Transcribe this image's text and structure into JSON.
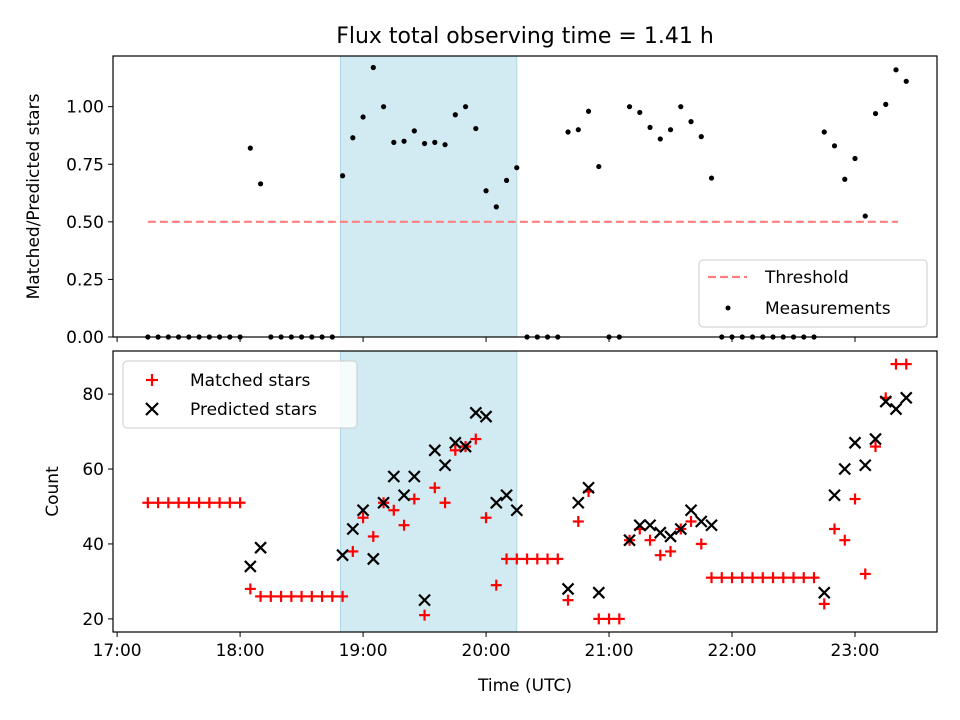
{
  "title": "Flux total observing time = 1.41 h",
  "colors": {
    "threshold": "#ff7f7f",
    "band": "#add8e6",
    "matched": "#ff0000",
    "predicted": "#000000",
    "measure": "#000000"
  },
  "chart_data": [
    {
      "type": "scatter",
      "ylabel": "Matched/Predicted stars",
      "ylim": [
        0,
        1.22
      ],
      "yticks": [
        "0.00",
        "0.25",
        "0.50",
        "0.75",
        "1.00"
      ],
      "xlim": [
        "16:58",
        "23:40"
      ],
      "highlight_band": [
        "18:49",
        "20:15"
      ],
      "threshold": {
        "name": "Threshold",
        "value": 0.5,
        "x_range": [
          "17:15",
          "23:21"
        ],
        "style": "dashed"
      },
      "legend": {
        "position": "lower-right",
        "entries": [
          "Threshold",
          "Measurements"
        ]
      },
      "series": [
        {
          "name": "Measurements",
          "points": [
            [
              "17:15",
              0
            ],
            [
              "17:20",
              0
            ],
            [
              "17:25",
              0
            ],
            [
              "17:30",
              0
            ],
            [
              "17:35",
              0
            ],
            [
              "17:40",
              0
            ],
            [
              "17:45",
              0
            ],
            [
              "17:50",
              0
            ],
            [
              "17:55",
              0
            ],
            [
              "18:00",
              0
            ],
            [
              "18:05",
              0.82
            ],
            [
              "18:10",
              0.665
            ],
            [
              "18:15",
              0
            ],
            [
              "18:20",
              0
            ],
            [
              "18:25",
              0
            ],
            [
              "18:30",
              0
            ],
            [
              "18:35",
              0
            ],
            [
              "18:40",
              0
            ],
            [
              "18:45",
              0
            ],
            [
              "18:50",
              0.7
            ],
            [
              "18:55",
              0.865
            ],
            [
              "19:00",
              0.955
            ],
            [
              "19:05",
              1.17
            ],
            [
              "19:10",
              1.0
            ],
            [
              "19:15",
              0.845
            ],
            [
              "19:20",
              0.85
            ],
            [
              "19:25",
              0.895
            ],
            [
              "19:30",
              0.84
            ],
            [
              "19:35",
              0.845
            ],
            [
              "19:40",
              0.835
            ],
            [
              "19:45",
              0.965
            ],
            [
              "19:50",
              1.0
            ],
            [
              "19:55",
              0.905
            ],
            [
              "20:00",
              0.635
            ],
            [
              "20:05",
              0.565
            ],
            [
              "20:10",
              0.68
            ],
            [
              "20:15",
              0.735
            ],
            [
              "20:20",
              0
            ],
            [
              "20:25",
              0
            ],
            [
              "20:30",
              0
            ],
            [
              "20:35",
              0
            ],
            [
              "20:40",
              0.89
            ],
            [
              "20:45",
              0.9
            ],
            [
              "20:50",
              0.98
            ],
            [
              "20:55",
              0.74
            ],
            [
              "21:00",
              0
            ],
            [
              "21:05",
              0
            ],
            [
              "21:10",
              1.0
            ],
            [
              "21:15",
              0.975
            ],
            [
              "21:20",
              0.91
            ],
            [
              "21:25",
              0.86
            ],
            [
              "21:30",
              0.9
            ],
            [
              "21:35",
              1.0
            ],
            [
              "21:40",
              0.935
            ],
            [
              "21:45",
              0.87
            ],
            [
              "21:50",
              0.69
            ],
            [
              "21:55",
              0
            ],
            [
              "22:00",
              0
            ],
            [
              "22:05",
              0
            ],
            [
              "22:10",
              0
            ],
            [
              "22:15",
              0
            ],
            [
              "22:20",
              0
            ],
            [
              "22:25",
              0
            ],
            [
              "22:30",
              0
            ],
            [
              "22:35",
              0
            ],
            [
              "22:40",
              0
            ],
            [
              "22:45",
              0.89
            ],
            [
              "22:50",
              0.83
            ],
            [
              "22:55",
              0.685
            ],
            [
              "23:00",
              0.775
            ],
            [
              "23:05",
              0.525
            ],
            [
              "23:10",
              0.97
            ],
            [
              "23:15",
              1.01
            ],
            [
              "23:20",
              1.16
            ],
            [
              "23:25",
              1.11
            ]
          ]
        }
      ]
    },
    {
      "type": "scatter",
      "xlabel": "Time (UTC)",
      "ylabel": "Count",
      "ylim": [
        16.5,
        91.5
      ],
      "yticks": [
        "20",
        "40",
        "60",
        "80"
      ],
      "xlim": [
        "16:58",
        "23:40"
      ],
      "xticks": [
        "17:00",
        "18:00",
        "19:00",
        "20:00",
        "21:00",
        "22:00",
        "23:00"
      ],
      "highlight_band": [
        "18:49",
        "20:15"
      ],
      "legend": {
        "position": "upper-left",
        "entries": [
          "Matched stars",
          "Predicted stars"
        ]
      },
      "series": [
        {
          "name": "Matched stars",
          "marker": "+",
          "points": [
            [
              "17:15",
              51
            ],
            [
              "17:20",
              51
            ],
            [
              "17:25",
              51
            ],
            [
              "17:30",
              51
            ],
            [
              "17:35",
              51
            ],
            [
              "17:40",
              51
            ],
            [
              "17:45",
              51
            ],
            [
              "17:50",
              51
            ],
            [
              "17:55",
              51
            ],
            [
              "18:00",
              51
            ],
            [
              "18:05",
              28
            ],
            [
              "18:10",
              26
            ],
            [
              "18:15",
              26
            ],
            [
              "18:20",
              26
            ],
            [
              "18:25",
              26
            ],
            [
              "18:30",
              26
            ],
            [
              "18:35",
              26
            ],
            [
              "18:40",
              26
            ],
            [
              "18:45",
              26
            ],
            [
              "18:50",
              26
            ],
            [
              "18:55",
              38
            ],
            [
              "19:00",
              47
            ],
            [
              "19:05",
              42
            ],
            [
              "19:10",
              51
            ],
            [
              "19:15",
              49
            ],
            [
              "19:20",
              45
            ],
            [
              "19:25",
              52
            ],
            [
              "19:30",
              21
            ],
            [
              "19:35",
              55
            ],
            [
              "19:40",
              51
            ],
            [
              "19:45",
              65
            ],
            [
              "19:50",
              66
            ],
            [
              "19:55",
              68
            ],
            [
              "20:00",
              47
            ],
            [
              "20:05",
              29
            ],
            [
              "20:10",
              36
            ],
            [
              "20:15",
              36
            ],
            [
              "20:20",
              36
            ],
            [
              "20:25",
              36
            ],
            [
              "20:30",
              36
            ],
            [
              "20:35",
              36
            ],
            [
              "20:40",
              25
            ],
            [
              "20:45",
              46
            ],
            [
              "20:50",
              54
            ],
            [
              "20:55",
              20
            ],
            [
              "21:00",
              20
            ],
            [
              "21:05",
              20
            ],
            [
              "21:10",
              41
            ],
            [
              "21:15",
              44
            ],
            [
              "21:20",
              41
            ],
            [
              "21:25",
              37
            ],
            [
              "21:30",
              38
            ],
            [
              "21:35",
              44
            ],
            [
              "21:40",
              46
            ],
            [
              "21:45",
              40
            ],
            [
              "21:50",
              31
            ],
            [
              "21:55",
              31
            ],
            [
              "22:00",
              31
            ],
            [
              "22:05",
              31
            ],
            [
              "22:10",
              31
            ],
            [
              "22:15",
              31
            ],
            [
              "22:20",
              31
            ],
            [
              "22:25",
              31
            ],
            [
              "22:30",
              31
            ],
            [
              "22:35",
              31
            ],
            [
              "22:40",
              31
            ],
            [
              "22:45",
              24
            ],
            [
              "22:50",
              44
            ],
            [
              "22:55",
              41
            ],
            [
              "23:00",
              52
            ],
            [
              "23:05",
              32
            ],
            [
              "23:10",
              66
            ],
            [
              "23:15",
              79
            ],
            [
              "23:20",
              88
            ],
            [
              "23:25",
              88
            ]
          ]
        },
        {
          "name": "Predicted stars",
          "marker": "x",
          "points": [
            [
              "18:05",
              34
            ],
            [
              "18:10",
              39
            ],
            [
              "18:50",
              37
            ],
            [
              "18:55",
              44
            ],
            [
              "19:00",
              49
            ],
            [
              "19:05",
              36
            ],
            [
              "19:10",
              51
            ],
            [
              "19:15",
              58
            ],
            [
              "19:20",
              53
            ],
            [
              "19:25",
              58
            ],
            [
              "19:30",
              25
            ],
            [
              "19:35",
              65
            ],
            [
              "19:40",
              61
            ],
            [
              "19:45",
              67
            ],
            [
              "19:50",
              66
            ],
            [
              "19:55",
              75
            ],
            [
              "20:00",
              74
            ],
            [
              "20:05",
              51
            ],
            [
              "20:10",
              53
            ],
            [
              "20:15",
              49
            ],
            [
              "20:40",
              28
            ],
            [
              "20:45",
              51
            ],
            [
              "20:50",
              55
            ],
            [
              "20:55",
              27
            ],
            [
              "21:10",
              41
            ],
            [
              "21:15",
              45
            ],
            [
              "21:20",
              45
            ],
            [
              "21:25",
              43
            ],
            [
              "21:30",
              42
            ],
            [
              "21:35",
              44
            ],
            [
              "21:40",
              49
            ],
            [
              "21:45",
              46
            ],
            [
              "21:50",
              45
            ],
            [
              "22:45",
              27
            ],
            [
              "22:50",
              53
            ],
            [
              "22:55",
              60
            ],
            [
              "23:00",
              67
            ],
            [
              "23:05",
              61
            ],
            [
              "23:10",
              68
            ],
            [
              "23:15",
              78
            ],
            [
              "23:20",
              76
            ],
            [
              "23:25",
              79
            ]
          ]
        }
      ]
    }
  ]
}
